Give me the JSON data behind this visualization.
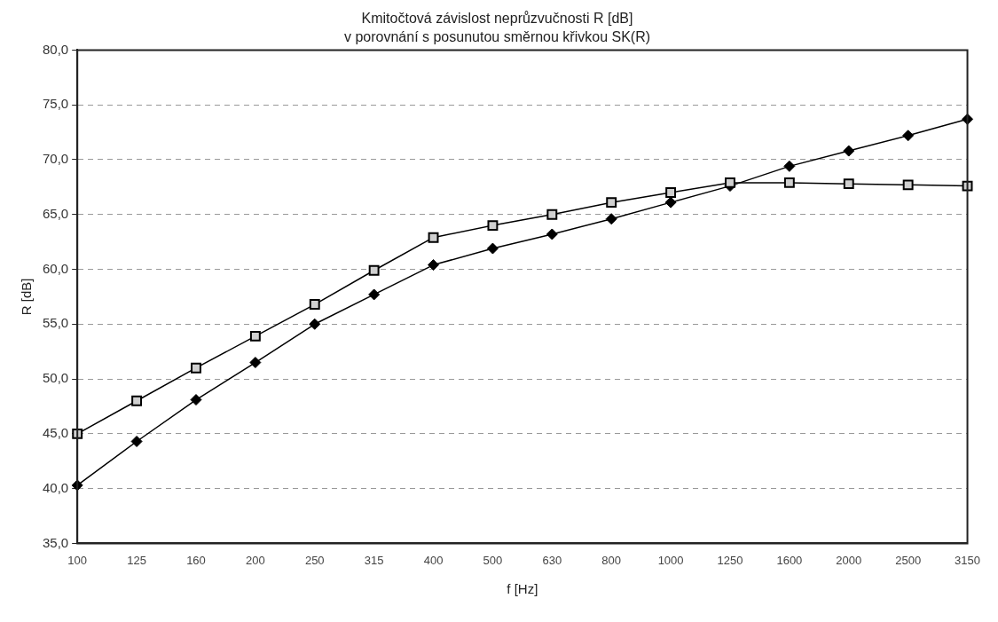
{
  "chart_data": {
    "type": "line",
    "title": "Kmitočtová závislost neprůzvučnosti R [dB]",
    "subtitle": "v porovnání s posunutou směrnou křivkou SK(R)",
    "xlabel": "f [Hz]",
    "ylabel": "R [dB]",
    "categories": [
      "100",
      "125",
      "160",
      "200",
      "250",
      "315",
      "400",
      "500",
      "630",
      "800",
      "1000",
      "1250",
      "1600",
      "2000",
      "2500",
      "3150"
    ],
    "series": [
      {
        "color": "#000000",
        "marker": "diamond",
        "values": [
          40.3,
          44.3,
          48.1,
          51.5,
          55.0,
          57.7,
          60.4,
          61.9,
          63.2,
          64.6,
          66.1,
          67.6,
          69.4,
          70.8,
          72.2,
          73.7
        ]
      },
      {
        "color": "#000000",
        "marker": "square",
        "values": [
          45.0,
          48.0,
          51.0,
          53.9,
          56.8,
          59.9,
          62.9,
          64.0,
          65.0,
          66.1,
          67.0,
          67.9,
          67.9,
          67.8,
          67.7,
          67.6
        ]
      }
    ],
    "ylim": [
      35,
      80
    ],
    "yticks": [
      {
        "value": 35,
        "label": "35,0"
      },
      {
        "value": 40,
        "label": "40,0"
      },
      {
        "value": 45,
        "label": "45,0"
      },
      {
        "value": 50,
        "label": "50,0"
      },
      {
        "value": 55,
        "label": "55,0"
      },
      {
        "value": 60,
        "label": "60,0"
      },
      {
        "value": 65,
        "label": "65,0"
      },
      {
        "value": 70,
        "label": "70,0"
      },
      {
        "value": 75,
        "label": "75,0"
      },
      {
        "value": 80,
        "label": "80,0"
      }
    ],
    "grid": "y",
    "legend": false,
    "line_style": "solid"
  }
}
